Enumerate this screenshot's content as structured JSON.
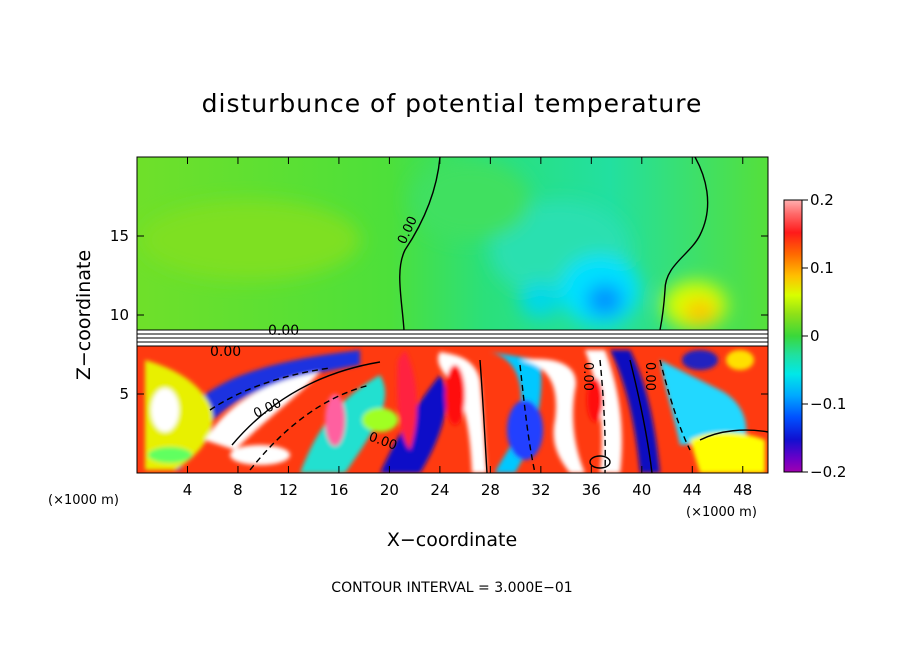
{
  "chart_data": {
    "type": "heatmap",
    "title": "disturbunce of potential temperature",
    "xlabel": "X−coordinate",
    "ylabel": "Z−coordinate",
    "x_unit": "(×1000 m)",
    "z_unit": "(×1000 m)",
    "xlim": [
      0,
      50
    ],
    "ylim": [
      0,
      20
    ],
    "xticks": [
      4,
      8,
      12,
      16,
      20,
      24,
      28,
      32,
      36,
      40,
      44,
      48
    ],
    "yticks": [
      5,
      10,
      15
    ],
    "colorbar": {
      "range": [
        -0.2,
        0.2
      ],
      "ticks": [
        "0.2",
        "0.1",
        "0",
        "−0.1",
        "−0.2"
      ]
    },
    "contour_interval_text": "CONTOUR INTERVAL = 3.000E−01",
    "contour_labels": [
      "0.00",
      "0.00",
      "0.00",
      "0.00",
      "0.00",
      "0.00",
      "0.00"
    ],
    "features": [
      {
        "x": 31.5,
        "z": 10.8,
        "value": -0.12
      },
      {
        "x": 43,
        "z": 10.2,
        "value": 0.14
      },
      {
        "x": 8,
        "z": 16,
        "value": 0.05
      },
      {
        "x": 26,
        "z": 15,
        "value": -0.03
      }
    ]
  }
}
